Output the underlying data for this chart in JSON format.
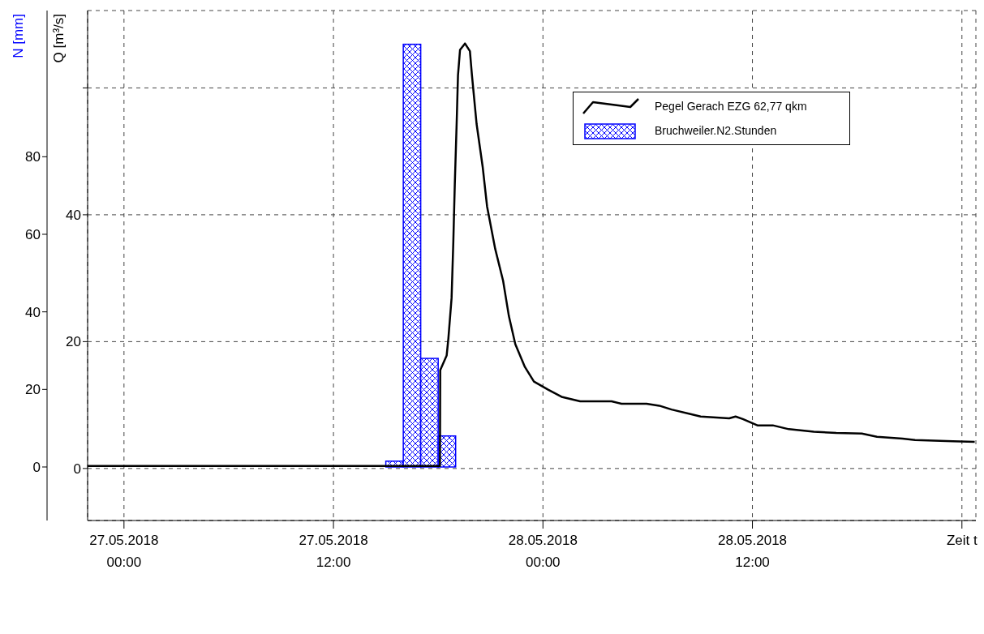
{
  "chart_data": {
    "type": "line",
    "ylabel": "Q [m³/s]",
    "y2label": "N [mm]",
    "xlim": [
      "2018-05-26T21:55",
      "2018-05-29T00:48"
    ],
    "xticks": [
      {
        "value": "2018-05-27T00:00",
        "label": "27.05.2018\n00:00"
      },
      {
        "value": "2018-05-27T12:00",
        "label": "27.05.2018\n12:00"
      },
      {
        "value": "2018-05-28T00:00",
        "label": "28.05.2018\n00:00"
      },
      {
        "value": "2018-05-28T12:00",
        "label": "28.05.2018\n12:00"
      },
      {
        "value": "2018-05-29T00:00",
        "label": "Zeit t"
      }
    ],
    "ylim": [
      -8.2,
      72.2
    ],
    "yticks": [
      0,
      20,
      40,
      {
        "value": 60,
        "label": null
      }
    ],
    "y2lim": [
      -13.8,
      117.7
    ],
    "y2ticks": [
      0,
      20,
      40,
      60,
      80
    ],
    "grid": true,
    "legend": "top right",
    "series": [
      {
        "name": "Pegel Gerach EZG 62,77 qkm",
        "color": "#000000",
        "x": [
          "2018-05-26T21:55",
          "2018-05-27T17:00",
          "2018-05-27T18:06",
          "2018-05-27T18:07",
          "2018-05-27T18:29",
          "2018-05-27T18:35",
          "2018-05-27T18:46",
          "2018-05-27T18:52",
          "2018-05-27T18:57",
          "2018-05-27T19:03",
          "2018-05-27T19:08",
          "2018-05-27T19:15",
          "2018-05-27T19:32",
          "2018-05-27T19:49",
          "2018-05-27T19:56",
          "2018-05-27T20:12",
          "2018-05-27T20:33",
          "2018-05-27T20:48",
          "2018-05-27T21:16",
          "2018-05-27T21:43",
          "2018-05-27T22:03",
          "2018-05-27T22:25",
          "2018-05-27T22:58",
          "2018-05-27T23:29",
          "2018-05-28T00:19",
          "2018-05-28T01:04",
          "2018-05-28T02:08",
          "2018-05-28T03:56",
          "2018-05-28T04:30",
          "2018-05-28T05:56",
          "2018-05-28T06:40",
          "2018-05-28T07:22",
          "2018-05-28T09:02",
          "2018-05-28T10:40",
          "2018-05-28T11:02",
          "2018-05-28T11:27",
          "2018-05-28T12:17",
          "2018-05-28T13:10",
          "2018-05-28T14:05",
          "2018-05-28T15:31",
          "2018-05-28T16:48",
          "2018-05-28T18:16",
          "2018-05-28T19:08",
          "2018-05-28T20:36",
          "2018-05-28T21:19",
          "2018-05-28T23:29",
          "2018-05-29T00:44"
        ],
        "values": [
          0.4,
          0.4,
          0.4,
          15.5,
          17.8,
          20.5,
          26.9,
          35.8,
          44.8,
          53.8,
          62.0,
          66.0,
          67.0,
          65.8,
          62.0,
          54.3,
          47.5,
          41.3,
          34.6,
          29.6,
          24.0,
          19.6,
          16.0,
          13.7,
          12.4,
          11.3,
          10.6,
          10.6,
          10.2,
          10.2,
          9.9,
          9.3,
          8.2,
          7.9,
          8.2,
          7.8,
          6.8,
          6.8,
          6.2,
          5.8,
          5.6,
          5.5,
          5.0,
          4.7,
          4.5,
          4.3,
          4.2
        ]
      },
      {
        "name": "Bruchweiler.N2.Stunden",
        "type": "bar",
        "axis": "y2",
        "color": "#0000ff",
        "x": [
          "2018-05-27T15:30",
          "2018-05-27T16:30",
          "2018-05-27T17:30",
          "2018-05-27T18:30"
        ],
        "values": [
          1.5,
          109,
          28,
          8
        ]
      }
    ]
  }
}
